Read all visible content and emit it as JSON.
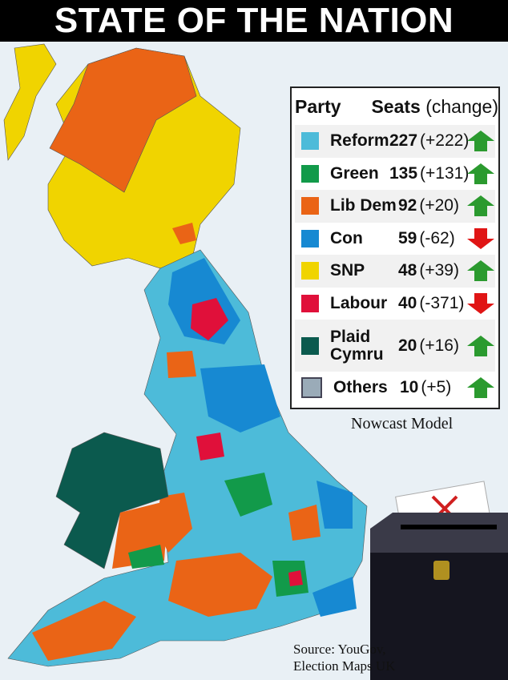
{
  "title": "STATE OF THE NATION",
  "legend": {
    "party_header": "Party",
    "seats_header": "Seats",
    "change_header": "(change)",
    "rows": [
      {
        "party": "Reform",
        "seats": "227",
        "change": "(+222)",
        "direction": "up",
        "color": "#4dbbd9"
      },
      {
        "party": "Green",
        "seats": "135",
        "change": "(+131)",
        "direction": "up",
        "color": "#129a4a"
      },
      {
        "party": "Lib Dem",
        "seats": "92",
        "change": "(+20)",
        "direction": "up",
        "color": "#ea6416"
      },
      {
        "party": "Con",
        "seats": "59",
        "change": "(-62)",
        "direction": "down",
        "color": "#1789d2"
      },
      {
        "party": "SNP",
        "seats": "48",
        "change": "(+39)",
        "direction": "up",
        "color": "#f0d400"
      },
      {
        "party": "Labour",
        "seats": "40",
        "change": "(-371)",
        "direction": "down",
        "color": "#e0103a"
      },
      {
        "party": "Plaid Cymru",
        "seats": "20",
        "change": "(+16)",
        "direction": "up",
        "color": "#0b5a4e"
      },
      {
        "party": "Others",
        "seats": "10",
        "change": "(+5)",
        "direction": "up",
        "color": "#9aabb8"
      }
    ],
    "arrow_up_color": "#2b9a2f",
    "arrow_down_color": "#e01515"
  },
  "note": "Nowcast Model",
  "source_line1": "Source: YouGov,",
  "source_line2": "Election Maps UK"
}
